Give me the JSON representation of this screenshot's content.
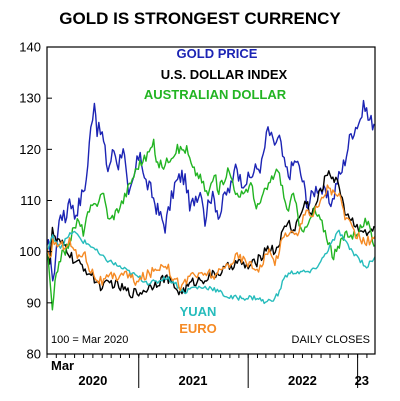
{
  "chart_data": {
    "type": "line",
    "title": "GOLD IS STRONGEST CURRENCY",
    "note": "100 = Mar 2020",
    "source_note": "DAILY CLOSES",
    "ylim": [
      80,
      140
    ],
    "yticks": [
      80,
      90,
      100,
      110,
      120,
      130,
      140
    ],
    "x_range": [
      "2020-03-01",
      "2023-02-28"
    ],
    "x_labels": [
      {
        "text": "Mar",
        "date": "2020-03-01"
      },
      {
        "text": "2020",
        "date": "2020-08-01"
      },
      {
        "text": "2021",
        "date": "2021-07-01"
      },
      {
        "text": "2022",
        "date": "2022-07-01"
      },
      {
        "text": "23",
        "date": "2023-01-15"
      }
    ],
    "year_boundaries": [
      "2021-01-01",
      "2022-01-01",
      "2023-01-01"
    ],
    "grid": false,
    "series": [
      {
        "name": "GOLD PRICE",
        "color": "#1c24b4",
        "points": [
          [
            "2020-03-01",
            100
          ],
          [
            "2020-03-10",
            102
          ],
          [
            "2020-03-20",
            93
          ],
          [
            "2020-04-01",
            101
          ],
          [
            "2020-04-15",
            108
          ],
          [
            "2020-05-01",
            106
          ],
          [
            "2020-05-15",
            111
          ],
          [
            "2020-06-01",
            107
          ],
          [
            "2020-06-20",
            110
          ],
          [
            "2020-07-10",
            114
          ],
          [
            "2020-07-25",
            124
          ],
          [
            "2020-08-06",
            130
          ],
          [
            "2020-08-15",
            124
          ],
          [
            "2020-09-01",
            123
          ],
          [
            "2020-09-20",
            116
          ],
          [
            "2020-10-10",
            120
          ],
          [
            "2020-10-25",
            117
          ],
          [
            "2020-11-10",
            121
          ],
          [
            "2020-11-28",
            110
          ],
          [
            "2020-12-10",
            113
          ],
          [
            "2021-01-06",
            120
          ],
          [
            "2021-01-20",
            114
          ],
          [
            "2021-02-10",
            112
          ],
          [
            "2021-03-05",
            108
          ],
          [
            "2021-03-30",
            105
          ],
          [
            "2021-04-15",
            109
          ],
          [
            "2021-05-01",
            113
          ],
          [
            "2021-05-25",
            115
          ],
          [
            "2021-06-10",
            113
          ],
          [
            "2021-06-20",
            108
          ],
          [
            "2021-07-10",
            111
          ],
          [
            "2021-07-30",
            112
          ],
          [
            "2021-08-10",
            106
          ],
          [
            "2021-08-25",
            111
          ],
          [
            "2021-09-10",
            110
          ],
          [
            "2021-09-28",
            107
          ],
          [
            "2021-10-15",
            111
          ],
          [
            "2021-11-10",
            113
          ],
          [
            "2021-11-20",
            118
          ],
          [
            "2021-12-05",
            114
          ],
          [
            "2022-01-01",
            114
          ],
          [
            "2022-01-25",
            116
          ],
          [
            "2022-02-15",
            117
          ],
          [
            "2022-03-08",
            124
          ],
          [
            "2022-03-25",
            121
          ],
          [
            "2022-04-15",
            122
          ],
          [
            "2022-05-01",
            117
          ],
          [
            "2022-05-15",
            115
          ],
          [
            "2022-06-10",
            118
          ],
          [
            "2022-07-01",
            114
          ],
          [
            "2022-07-20",
            109
          ],
          [
            "2022-08-10",
            112
          ],
          [
            "2022-08-25",
            113
          ],
          [
            "2022-09-15",
            111
          ],
          [
            "2022-09-28",
            110
          ],
          [
            "2022-10-10",
            110
          ],
          [
            "2022-10-25",
            114
          ],
          [
            "2022-11-05",
            115
          ],
          [
            "2022-11-20",
            118
          ],
          [
            "2022-12-10",
            123
          ],
          [
            "2023-01-10",
            126
          ],
          [
            "2023-01-26",
            129
          ],
          [
            "2023-02-05",
            126
          ],
          [
            "2023-02-25",
            125
          ]
        ]
      },
      {
        "name": "U.S. DOLLAR INDEX",
        "color": "#000000",
        "points": [
          [
            "2020-03-01",
            100
          ],
          [
            "2020-03-10",
            98
          ],
          [
            "2020-03-19",
            104
          ],
          [
            "2020-04-01",
            102
          ],
          [
            "2020-05-01",
            101
          ],
          [
            "2020-06-01",
            98
          ],
          [
            "2020-07-01",
            97
          ],
          [
            "2020-08-01",
            95
          ],
          [
            "2020-09-01",
            93
          ],
          [
            "2020-10-01",
            94
          ],
          [
            "2020-11-01",
            93
          ],
          [
            "2020-12-01",
            92
          ],
          [
            "2021-01-06",
            92
          ],
          [
            "2021-02-01",
            93
          ],
          [
            "2021-03-31",
            95
          ],
          [
            "2021-05-20",
            92
          ],
          [
            "2021-06-30",
            94
          ],
          [
            "2021-08-20",
            95
          ],
          [
            "2021-09-30",
            96
          ],
          [
            "2021-11-25",
            98
          ],
          [
            "2022-01-01",
            97
          ],
          [
            "2022-01-30",
            98
          ],
          [
            "2022-03-07",
            101
          ],
          [
            "2022-04-01",
            100
          ],
          [
            "2022-05-13",
            106
          ],
          [
            "2022-06-01",
            104
          ],
          [
            "2022-07-14",
            110
          ],
          [
            "2022-08-01",
            107
          ],
          [
            "2022-08-25",
            111
          ],
          [
            "2022-09-27",
            116
          ],
          [
            "2022-10-15",
            114
          ],
          [
            "2022-11-01",
            113
          ],
          [
            "2022-11-20",
            108
          ],
          [
            "2022-12-15",
            106
          ],
          [
            "2023-01-20",
            104
          ],
          [
            "2023-02-01",
            103
          ],
          [
            "2023-02-25",
            105
          ]
        ]
      },
      {
        "name": "AUSTRALIAN DOLLAR",
        "color": "#22b422",
        "points": [
          [
            "2020-03-01",
            100
          ],
          [
            "2020-03-10",
            95
          ],
          [
            "2020-03-19",
            88
          ],
          [
            "2020-04-01",
            96
          ],
          [
            "2020-04-15",
            99
          ],
          [
            "2020-05-01",
            100
          ],
          [
            "2020-05-20",
            103
          ],
          [
            "2020-06-10",
            106
          ],
          [
            "2020-06-30",
            104
          ],
          [
            "2020-07-20",
            108
          ],
          [
            "2020-08-10",
            109
          ],
          [
            "2020-09-01",
            112
          ],
          [
            "2020-09-25",
            106
          ],
          [
            "2020-10-20",
            108
          ],
          [
            "2020-11-10",
            110
          ],
          [
            "2020-12-01",
            113
          ],
          [
            "2020-12-31",
            117
          ],
          [
            "2021-01-20",
            118
          ],
          [
            "2021-02-20",
            121
          ],
          [
            "2021-03-05",
            117
          ],
          [
            "2021-03-30",
            117
          ],
          [
            "2021-04-20",
            119
          ],
          [
            "2021-05-10",
            120
          ],
          [
            "2021-06-10",
            120
          ],
          [
            "2021-06-30",
            116
          ],
          [
            "2021-07-20",
            115
          ],
          [
            "2021-08-20",
            111
          ],
          [
            "2021-09-10",
            115
          ],
          [
            "2021-09-25",
            112
          ],
          [
            "2021-10-25",
            116
          ],
          [
            "2021-11-10",
            114
          ],
          [
            "2021-11-30",
            110
          ],
          [
            "2021-12-20",
            112
          ],
          [
            "2022-01-15",
            113
          ],
          [
            "2022-01-28",
            108
          ],
          [
            "2022-02-20",
            111
          ],
          [
            "2022-03-10",
            113
          ],
          [
            "2022-04-05",
            116
          ],
          [
            "2022-04-20",
            114
          ],
          [
            "2022-05-10",
            108
          ],
          [
            "2022-06-01",
            111
          ],
          [
            "2022-06-20",
            106
          ],
          [
            "2022-07-10",
            104
          ],
          [
            "2022-08-10",
            108
          ],
          [
            "2022-08-30",
            106
          ],
          [
            "2022-09-15",
            104
          ],
          [
            "2022-10-13",
            99
          ],
          [
            "2022-11-01",
            101
          ],
          [
            "2022-11-25",
            104
          ],
          [
            "2022-12-15",
            103
          ],
          [
            "2023-01-15",
            105
          ],
          [
            "2023-02-01",
            106
          ],
          [
            "2023-02-15",
            103
          ],
          [
            "2023-02-25",
            101
          ]
        ]
      },
      {
        "name": "YUAN",
        "color": "#26bcbc",
        "points": [
          [
            "2020-03-01",
            100
          ],
          [
            "2020-03-20",
            103
          ],
          [
            "2020-04-15",
            101
          ],
          [
            "2020-05-27",
            104
          ],
          [
            "2020-06-30",
            102
          ],
          [
            "2020-07-30",
            101
          ],
          [
            "2020-08-30",
            99
          ],
          [
            "2020-09-30",
            98
          ],
          [
            "2020-10-30",
            97
          ],
          [
            "2020-11-30",
            96
          ],
          [
            "2020-12-31",
            95
          ],
          [
            "2021-01-31",
            94
          ],
          [
            "2021-02-28",
            94
          ],
          [
            "2021-03-31",
            95
          ],
          [
            "2021-04-30",
            94
          ],
          [
            "2021-05-31",
            92
          ],
          [
            "2021-06-30",
            93
          ],
          [
            "2021-07-31",
            93
          ],
          [
            "2021-08-31",
            93
          ],
          [
            "2021-09-30",
            92
          ],
          [
            "2021-10-31",
            91
          ],
          [
            "2021-11-30",
            91
          ],
          [
            "2021-12-31",
            91
          ],
          [
            "2022-01-31",
            91
          ],
          [
            "2022-02-28",
            90
          ],
          [
            "2022-03-31",
            91
          ],
          [
            "2022-04-15",
            92
          ],
          [
            "2022-04-30",
            95
          ],
          [
            "2022-05-31",
            96
          ],
          [
            "2022-06-30",
            96
          ],
          [
            "2022-07-31",
            96
          ],
          [
            "2022-08-31",
            98
          ],
          [
            "2022-09-30",
            101
          ],
          [
            "2022-10-31",
            104
          ],
          [
            "2022-11-10",
            103
          ],
          [
            "2022-11-30",
            101
          ],
          [
            "2022-12-31",
            99
          ],
          [
            "2023-01-31",
            97
          ],
          [
            "2023-02-15",
            98
          ],
          [
            "2023-02-28",
            99
          ]
        ]
      },
      {
        "name": "EURO",
        "color": "#f58a24",
        "points": [
          [
            "2020-03-01",
            100
          ],
          [
            "2020-03-10",
            98
          ],
          [
            "2020-03-20",
            102
          ],
          [
            "2020-04-15",
            101
          ],
          [
            "2020-05-15",
            102
          ],
          [
            "2020-06-10",
            99
          ],
          [
            "2020-07-01",
            100
          ],
          [
            "2020-07-20",
            97
          ],
          [
            "2020-08-10",
            95
          ],
          [
            "2020-09-01",
            94
          ],
          [
            "2020-10-01",
            95
          ],
          [
            "2020-10-20",
            95
          ],
          [
            "2020-11-10",
            96
          ],
          [
            "2020-12-01",
            95
          ],
          [
            "2020-12-31",
            94
          ],
          [
            "2021-01-15",
            95
          ],
          [
            "2021-02-15",
            96
          ],
          [
            "2021-03-31",
            98
          ],
          [
            "2021-04-15",
            96
          ],
          [
            "2021-05-25",
            93
          ],
          [
            "2021-06-30",
            96
          ],
          [
            "2021-07-20",
            95
          ],
          [
            "2021-08-20",
            96
          ],
          [
            "2021-09-15",
            95
          ],
          [
            "2021-10-15",
            97
          ],
          [
            "2021-11-25",
            99
          ],
          [
            "2021-12-31",
            98
          ],
          [
            "2022-01-15",
            97
          ],
          [
            "2022-02-10",
            97
          ],
          [
            "2022-03-07",
            100
          ],
          [
            "2022-03-31",
            98
          ],
          [
            "2022-04-30",
            103
          ],
          [
            "2022-05-15",
            104
          ],
          [
            "2022-06-15",
            103
          ],
          [
            "2022-07-14",
            109
          ],
          [
            "2022-07-31",
            107
          ],
          [
            "2022-08-25",
            109
          ],
          [
            "2022-09-27",
            113
          ],
          [
            "2022-10-15",
            111
          ],
          [
            "2022-11-01",
            111
          ],
          [
            "2022-11-20",
            107
          ],
          [
            "2022-12-15",
            104
          ],
          [
            "2023-01-20",
            102
          ],
          [
            "2023-02-15",
            102
          ],
          [
            "2023-02-28",
            103
          ]
        ]
      }
    ],
    "legend": [
      {
        "text": "GOLD PRICE",
        "color": "#1c24b4"
      },
      {
        "text": "U.S. DOLLAR INDEX",
        "color": "#000000"
      },
      {
        "text": "AUSTRALIAN DOLLAR",
        "color": "#22b422"
      },
      {
        "text": "YUAN",
        "color": "#26bcbc"
      },
      {
        "text": "EURO",
        "color": "#f58a24"
      }
    ]
  }
}
